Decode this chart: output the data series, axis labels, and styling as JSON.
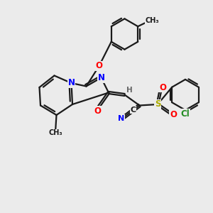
{
  "background_color": "#ebebeb",
  "bond_color": "#1a1a1a",
  "atom_colors": {
    "N": "#0000ff",
    "O": "#ff0000",
    "S": "#aaaa00",
    "Cl": "#228b22",
    "C": "#1a1a1a",
    "H": "#666666"
  },
  "lw": 1.6,
  "fs": 8.5
}
